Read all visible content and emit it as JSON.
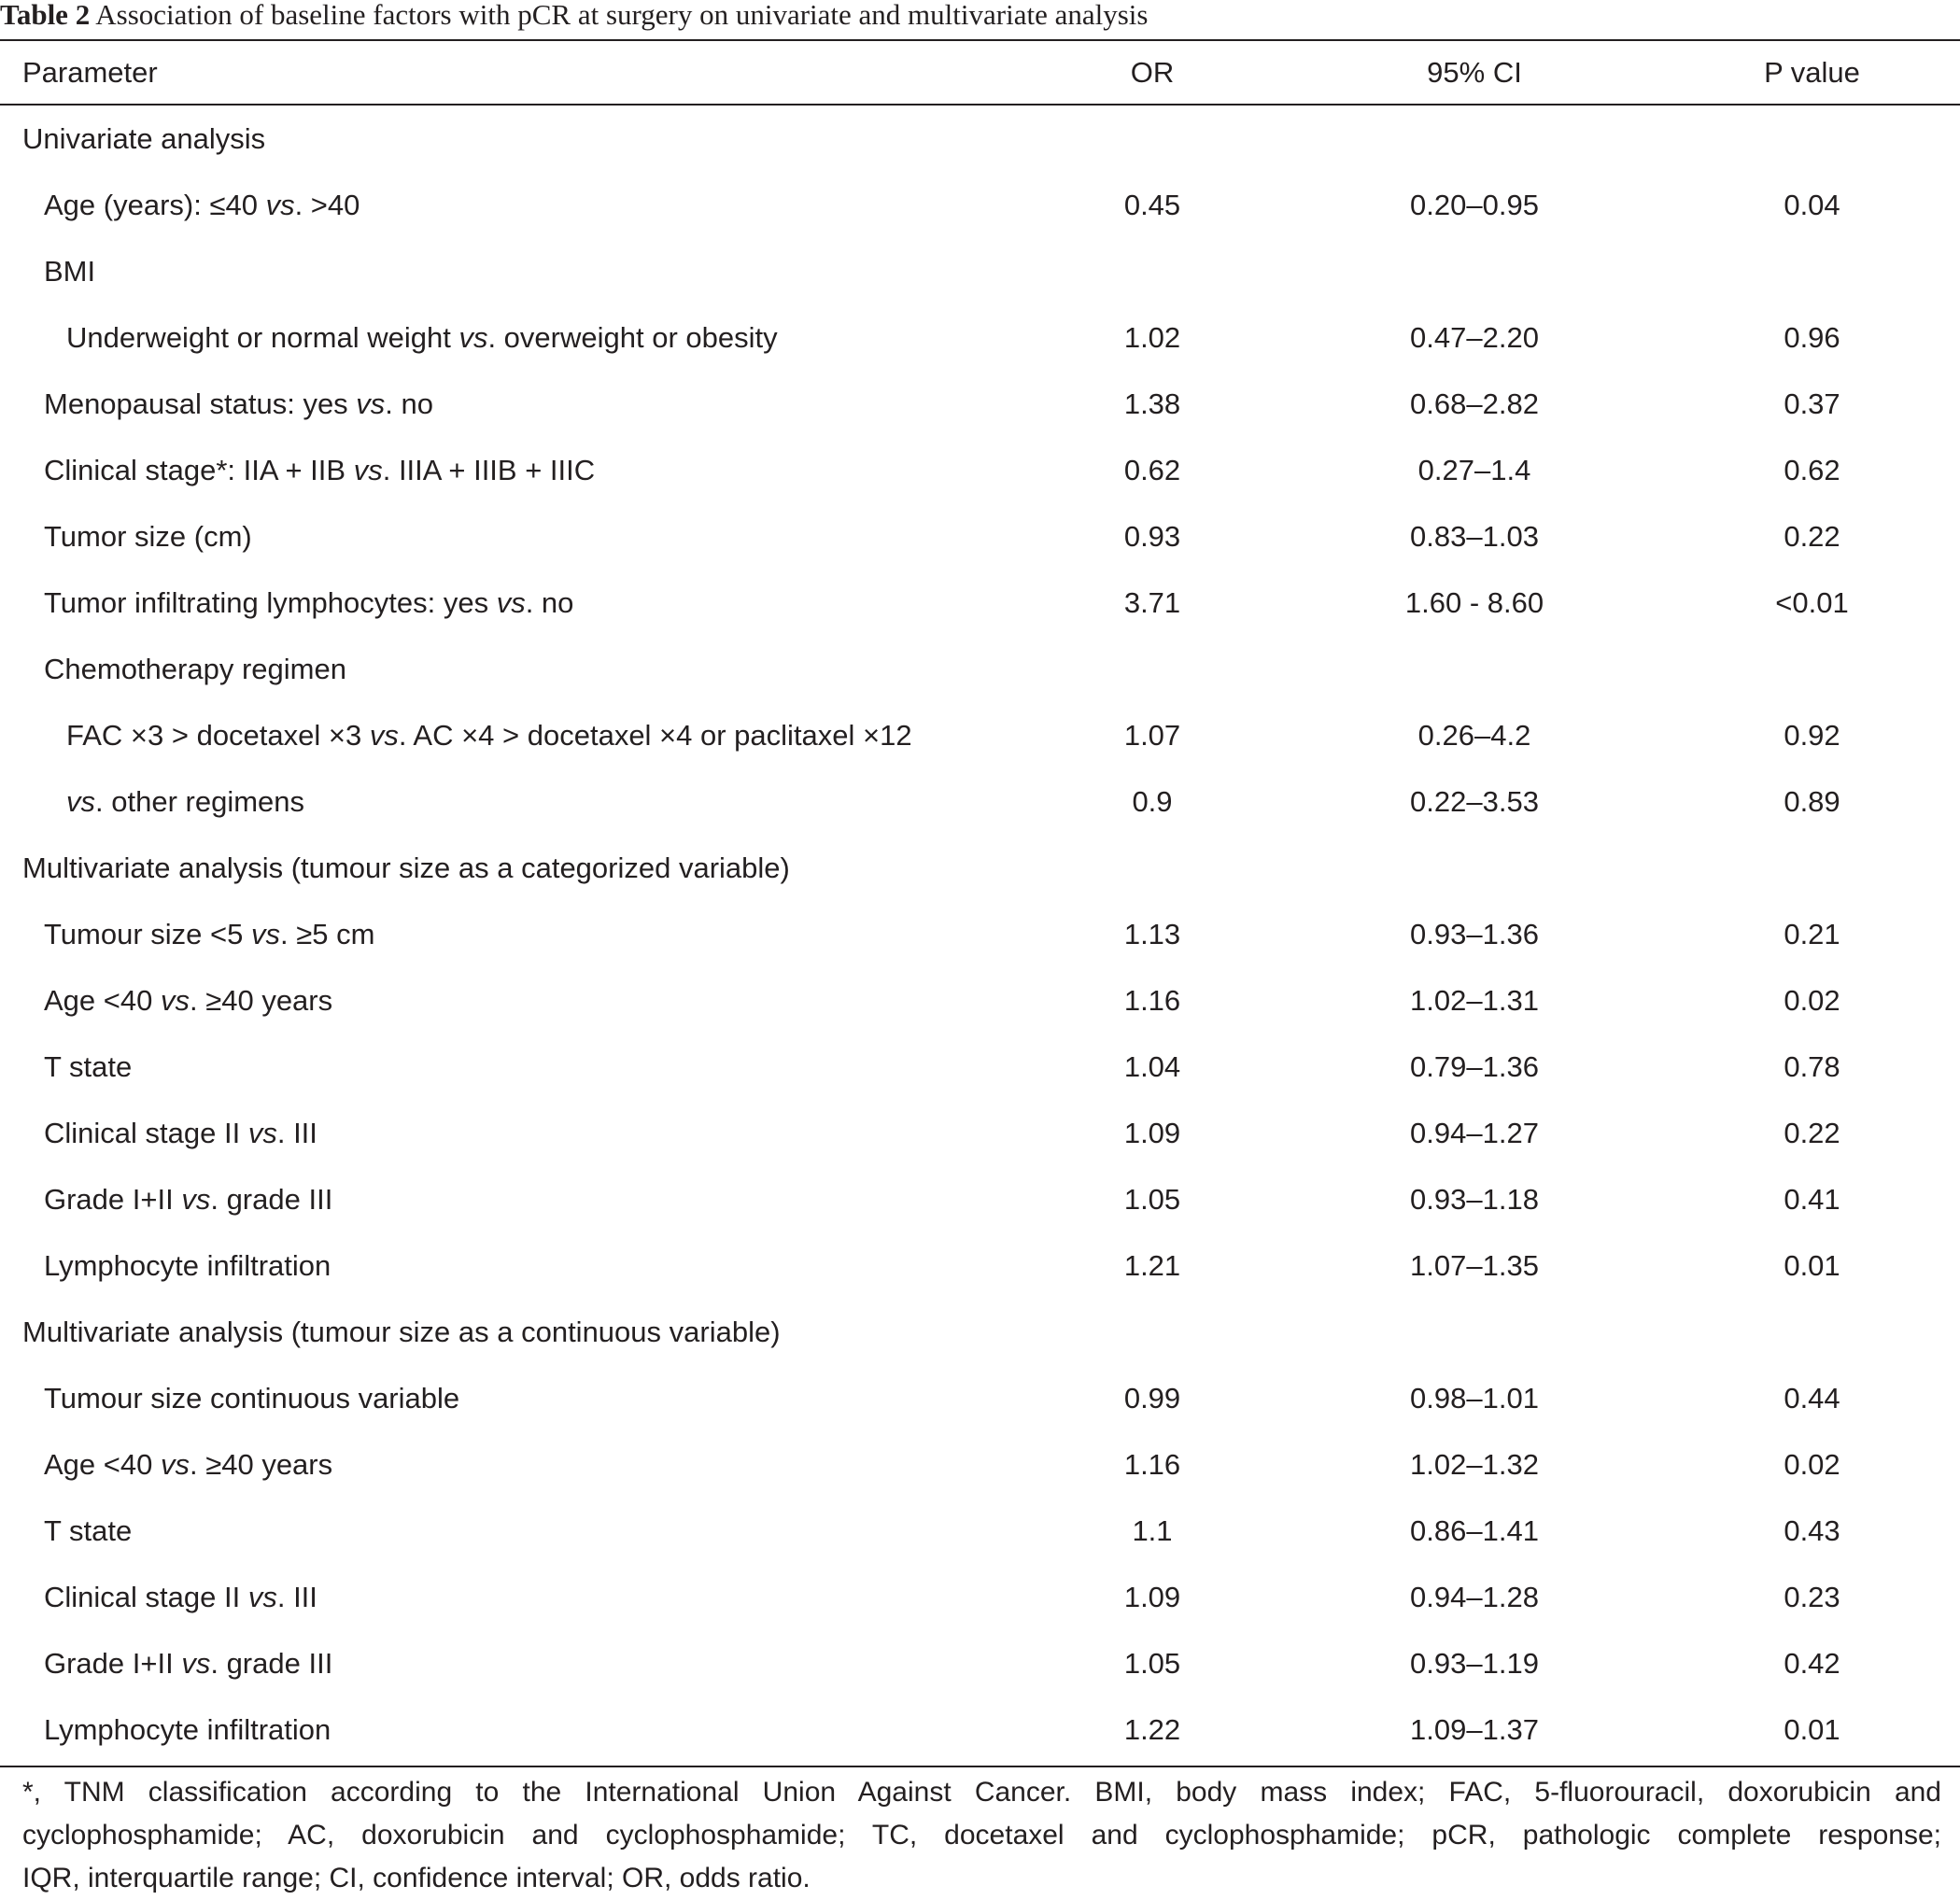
{
  "caption": {
    "label": "Table 2",
    "text": "Association of baseline factors with pCR at surgery on univariate and multivariate analysis"
  },
  "header": {
    "parameter": "Parameter",
    "or": "OR",
    "ci": "95% CI",
    "p": "P value"
  },
  "rows": [
    {
      "indent": 0,
      "label": "Univariate analysis",
      "or": "",
      "ci": "",
      "p": ""
    },
    {
      "indent": 1,
      "label": "Age (years): ≤40 vs. >40",
      "or": "0.45",
      "ci": "0.20–0.95",
      "p": "0.04"
    },
    {
      "indent": 1,
      "label": "BMI",
      "or": "",
      "ci": "",
      "p": ""
    },
    {
      "indent": 2,
      "label": "Underweight or normal weight vs. overweight or obesity",
      "or": "1.02",
      "ci": "0.47–2.20",
      "p": "0.96"
    },
    {
      "indent": 1,
      "label": "Menopausal status: yes vs. no",
      "or": "1.38",
      "ci": "0.68–2.82",
      "p": "0.37"
    },
    {
      "indent": 1,
      "label": "Clinical stage*: IIA + IIB vs. IIIA + IIIB + IIIC",
      "or": "0.62",
      "ci": "0.27–1.4",
      "p": "0.62"
    },
    {
      "indent": 1,
      "label": "Tumor size (cm)",
      "or": "0.93",
      "ci": "0.83–1.03",
      "p": "0.22"
    },
    {
      "indent": 1,
      "label": "Tumor infiltrating lymphocytes: yes vs. no",
      "or": "3.71",
      "ci": "1.60 - 8.60",
      "p": "<0.01"
    },
    {
      "indent": 1,
      "label": "Chemotherapy regimen",
      "or": "",
      "ci": "",
      "p": ""
    },
    {
      "indent": 2,
      "label": "FAC ×3 > docetaxel ×3 vs. AC ×4 > docetaxel ×4 or paclitaxel ×12",
      "or": "1.07",
      "ci": "0.26–4.2",
      "p": "0.92"
    },
    {
      "indent": 2,
      "label": "vs. other regimens",
      "or": "0.9",
      "ci": "0.22–3.53",
      "p": "0.89"
    },
    {
      "indent": 0,
      "label": "Multivariate analysis (tumour size as a categorized variable)",
      "or": "",
      "ci": "",
      "p": ""
    },
    {
      "indent": 1,
      "label": "Tumour size <5 vs. ≥5 cm",
      "or": "1.13",
      "ci": "0.93–1.36",
      "p": "0.21"
    },
    {
      "indent": 1,
      "label": "Age <40 vs. ≥40 years",
      "or": "1.16",
      "ci": "1.02–1.31",
      "p": "0.02"
    },
    {
      "indent": 1,
      "label": "T state",
      "or": "1.04",
      "ci": "0.79–1.36",
      "p": "0.78"
    },
    {
      "indent": 1,
      "label": "Clinical stage II vs. III",
      "or": "1.09",
      "ci": "0.94–1.27",
      "p": "0.22"
    },
    {
      "indent": 1,
      "label": "Grade I+II vs. grade III",
      "or": "1.05",
      "ci": "0.93–1.18",
      "p": "0.41"
    },
    {
      "indent": 1,
      "label": "Lymphocyte infiltration",
      "or": "1.21",
      "ci": "1.07–1.35",
      "p": "0.01"
    },
    {
      "indent": 0,
      "label": "Multivariate analysis (tumour size as a continuous variable)",
      "or": "",
      "ci": "",
      "p": ""
    },
    {
      "indent": 1,
      "label": "Tumour size continuous variable",
      "or": "0.99",
      "ci": "0.98–1.01",
      "p": "0.44"
    },
    {
      "indent": 1,
      "label": "Age <40 vs. ≥40 years",
      "or": "1.16",
      "ci": "1.02–1.32",
      "p": "0.02"
    },
    {
      "indent": 1,
      "label": "T state",
      "or": "1.1",
      "ci": "0.86–1.41",
      "p": "0.43"
    },
    {
      "indent": 1,
      "label": "Clinical stage II vs. III",
      "or": "1.09",
      "ci": "0.94–1.28",
      "p": "0.23"
    },
    {
      "indent": 1,
      "label": "Grade I+II vs. grade III",
      "or": "1.05",
      "ci": "0.93–1.19",
      "p": "0.42"
    },
    {
      "indent": 1,
      "label": "Lymphocyte infiltration",
      "or": "1.22",
      "ci": "1.09–1.37",
      "p": "0.01"
    }
  ],
  "footnote": {
    "lines": [
      "*, TNM classification according to the International Union Against Cancer. BMI, body mass index; FAC, 5-fluorouracil, doxorubicin and",
      "cyclophosphamide; AC, doxorubicin and cyclophosphamide; TC, docetaxel and cyclophosphamide; pCR, pathologic complete response;",
      "IQR, interquartile range; CI, confidence interval; OR, odds ratio."
    ]
  }
}
